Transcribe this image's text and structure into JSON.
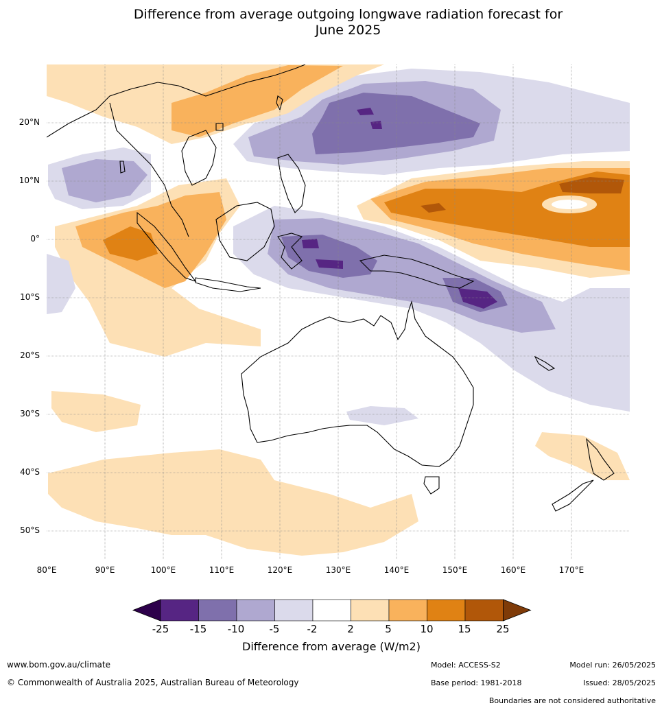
{
  "title": {
    "line1": "Difference from average outgoing longwave radiation forecast for",
    "line2": "June 2025"
  },
  "map": {
    "lat_labels": [
      "20°N",
      "10°N",
      "0°",
      "10°S",
      "20°S",
      "30°S",
      "40°S",
      "50°S"
    ],
    "lon_labels": [
      "80°E",
      "90°E",
      "100°E",
      "110°E",
      "120°E",
      "130°E",
      "140°E",
      "150°E",
      "160°E",
      "170°E"
    ]
  },
  "colorbar": {
    "ticks": [
      "-25",
      "-15",
      "-10",
      "-5",
      "-2",
      "2",
      "5",
      "10",
      "15",
      "25"
    ],
    "colors": [
      "#562583",
      "#7f70ac",
      "#afa8d0",
      "#dbdaeb",
      "#ffffff",
      "#fde0b5",
      "#f9b25c",
      "#e08214",
      "#b15709"
    ],
    "under_color": "#2d004b",
    "over_color": "#7f3b08",
    "label": "Difference from average (W/m2)"
  },
  "footer": {
    "website": "www.bom.gov.au/climate",
    "copyright": "© Commonwealth of Australia 2025, Australian Bureau of Meteorology",
    "model": "Model: ACCESS-S2",
    "base_period": "Base period: 1981-2018",
    "model_run": "Model run: 26/05/2025",
    "issued": "Issued: 28/05/2025",
    "boundaries_note": "Boundaries are not considered authoritative"
  }
}
